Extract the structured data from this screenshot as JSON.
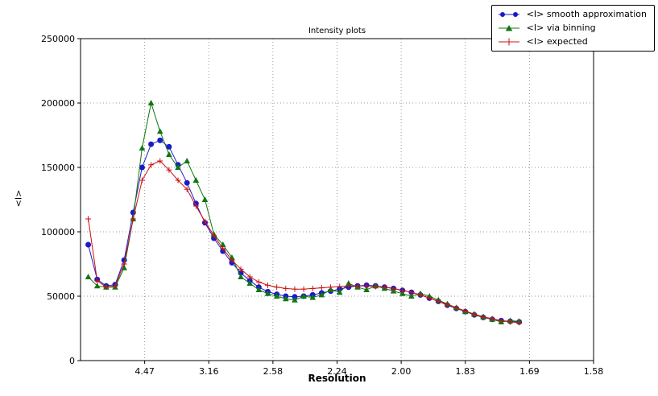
{
  "figure": {
    "title": "Intensity plots",
    "xlabel": "Resolution",
    "ylabel": "<I>"
  },
  "chart_data": {
    "type": "line",
    "title": "Intensity plots",
    "xlabel": "Resolution",
    "ylabel": "<I>",
    "grid": true,
    "legend_position": "upper right, outside top of axes",
    "x_axis": {
      "note": "axis linear in 1/d^2, tick labels show resolution d in Angstrom",
      "range": [
        0,
        0.4
      ],
      "ticks": [
        {
          "value": 0.05,
          "label": "4.47"
        },
        {
          "value": 0.1,
          "label": "3.16"
        },
        {
          "value": 0.15,
          "label": "2.58"
        },
        {
          "value": 0.2,
          "label": "2.24"
        },
        {
          "value": 0.25,
          "label": "2.00"
        },
        {
          "value": 0.3,
          "label": "1.83"
        },
        {
          "value": 0.35,
          "label": "1.69"
        },
        {
          "value": 0.4,
          "label": "1.58"
        }
      ]
    },
    "y_axis": {
      "range": [
        0,
        250000
      ],
      "ticks": [
        {
          "value": 0,
          "label": "0"
        },
        {
          "value": 50000,
          "label": "50000"
        },
        {
          "value": 100000,
          "label": "100000"
        },
        {
          "value": 150000,
          "label": "150000"
        },
        {
          "value": 200000,
          "label": "200000"
        },
        {
          "value": 250000,
          "label": "250000"
        }
      ]
    },
    "x": [
      0.006,
      0.013,
      0.02,
      0.027,
      0.034,
      0.041,
      0.048,
      0.055,
      0.062,
      0.069,
      0.076,
      0.083,
      0.09,
      0.097,
      0.104,
      0.111,
      0.118,
      0.125,
      0.132,
      0.139,
      0.146,
      0.153,
      0.16,
      0.167,
      0.174,
      0.181,
      0.188,
      0.195,
      0.202,
      0.209,
      0.216,
      0.223,
      0.23,
      0.237,
      0.244,
      0.251,
      0.258,
      0.265,
      0.272,
      0.279,
      0.286,
      0.293,
      0.3,
      0.307,
      0.314,
      0.321,
      0.328,
      0.335,
      0.342
    ],
    "series": [
      {
        "name": "<I> smooth approximation",
        "color": "#1a1acc",
        "marker": "circle",
        "values": [
          90000,
          63000,
          58000,
          59000,
          78000,
          115000,
          150000,
          168000,
          171000,
          166000,
          152000,
          138000,
          122000,
          107000,
          95000,
          85000,
          76000,
          68000,
          62000,
          57000,
          53500,
          51500,
          50000,
          49500,
          50000,
          51000,
          52500,
          54000,
          55500,
          57000,
          58000,
          58500,
          58000,
          57000,
          56000,
          54500,
          53000,
          51000,
          48500,
          46000,
          43000,
          40500,
          38000,
          35500,
          33500,
          32000,
          31000,
          30500,
          30000
        ]
      },
      {
        "name": "<I> via binning",
        "color": "#117711",
        "marker": "triangle",
        "values": [
          65000,
          58000,
          57000,
          57000,
          72000,
          110000,
          165000,
          200000,
          178000,
          160000,
          150000,
          155000,
          140000,
          125000,
          98000,
          90000,
          80000,
          65000,
          60000,
          55000,
          52000,
          50000,
          48000,
          47000,
          50000,
          49000,
          51000,
          55000,
          53000,
          60000,
          57000,
          55000,
          58000,
          56000,
          54000,
          52000,
          50000,
          52000,
          50000,
          47000,
          44000,
          41000,
          38000,
          36000,
          34000,
          32000,
          30000,
          31000,
          30500
        ]
      },
      {
        "name": "<I> expected",
        "color": "#cc1111",
        "marker": "plus",
        "values": [
          110000,
          62000,
          57000,
          58000,
          75000,
          110000,
          140000,
          152000,
          155000,
          148000,
          140000,
          133000,
          120000,
          108000,
          97000,
          87000,
          78000,
          71000,
          65000,
          61000,
          58500,
          57000,
          56000,
          55500,
          55500,
          56000,
          56500,
          57000,
          57500,
          58000,
          58000,
          58000,
          57500,
          57000,
          56000,
          54500,
          53000,
          51000,
          48500,
          46000,
          43500,
          41000,
          38500,
          36000,
          34000,
          32500,
          31000,
          30000,
          29500
        ]
      }
    ]
  }
}
